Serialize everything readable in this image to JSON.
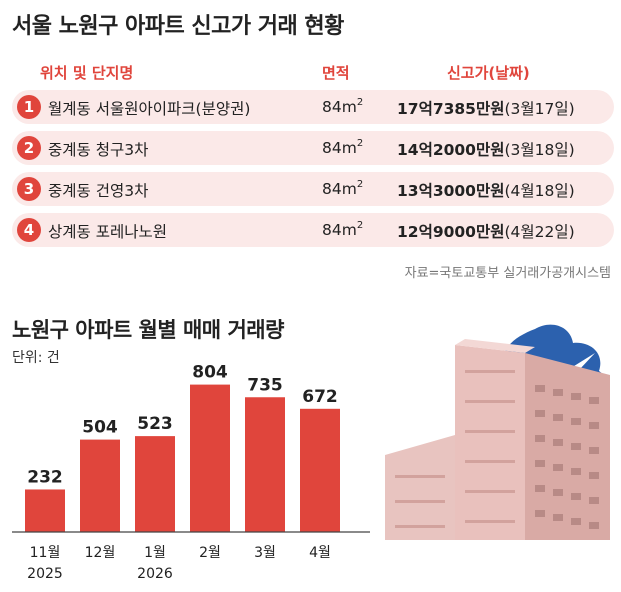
{
  "table": {
    "title": "서울 노원구 아파트 신고가 거래 현황",
    "headers": {
      "name": "위치 및 단지명",
      "area": "면적",
      "price": "신고가(날짜)"
    },
    "rows": [
      {
        "no": "1",
        "name": "월계동 서울원아이파크(분양권)",
        "area": "84m",
        "area_sup": "2",
        "price": "17억7385만원",
        "date": "(3월17일)"
      },
      {
        "no": "2",
        "name": "중계동 청구3차",
        "area": "84m",
        "area_sup": "2",
        "price": "14억2000만원",
        "date": "(3월18일)"
      },
      {
        "no": "3",
        "name": "중계동 건영3차",
        "area": "84m",
        "area_sup": "2",
        "price": "13억3000만원",
        "date": "(4월18일)"
      },
      {
        "no": "4",
        "name": "상계동 포레나노원",
        "area": "84m",
        "area_sup": "2",
        "price": "12억9000만원",
        "date": "(4월22일)"
      }
    ],
    "source": "자료=국토교통부 실거래가공개시스템"
  },
  "chart_data": {
    "type": "bar",
    "title": "노원구 아파트 월별 매매 거래량",
    "unit_label": "단위: 건",
    "categories": [
      {
        "month": "11월",
        "year": "2025"
      },
      {
        "month": "12월",
        "year": ""
      },
      {
        "month": "1월",
        "year": "2026"
      },
      {
        "month": "2월",
        "year": ""
      },
      {
        "month": "3월",
        "year": ""
      },
      {
        "month": "4월",
        "year": ""
      }
    ],
    "values": [
      232,
      504,
      523,
      804,
      735,
      672
    ],
    "ylim": [
      0,
      900
    ],
    "bar_color": "#e0453c"
  },
  "colors": {
    "accent": "#e0453c",
    "row_bg": "#fbe9e8"
  }
}
